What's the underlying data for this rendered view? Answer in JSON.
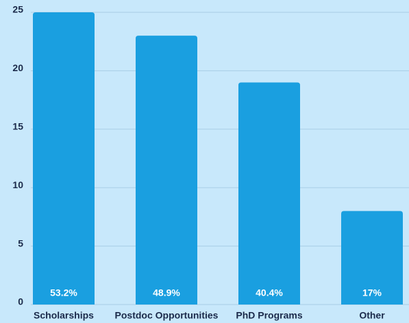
{
  "chart_data": {
    "type": "bar",
    "categories": [
      "Scholarships",
      "Postdoc Opportunities",
      "PhD Programs",
      "Other"
    ],
    "values": [
      25,
      23,
      19,
      8
    ],
    "bar_labels": [
      "53.2%",
      "48.9%",
      "40.4%",
      "17%"
    ],
    "color": "#1a9fe0",
    "ylim": [
      0,
      25
    ],
    "yticks": [
      0,
      5,
      10,
      15,
      20,
      25
    ],
    "grid": true
  }
}
